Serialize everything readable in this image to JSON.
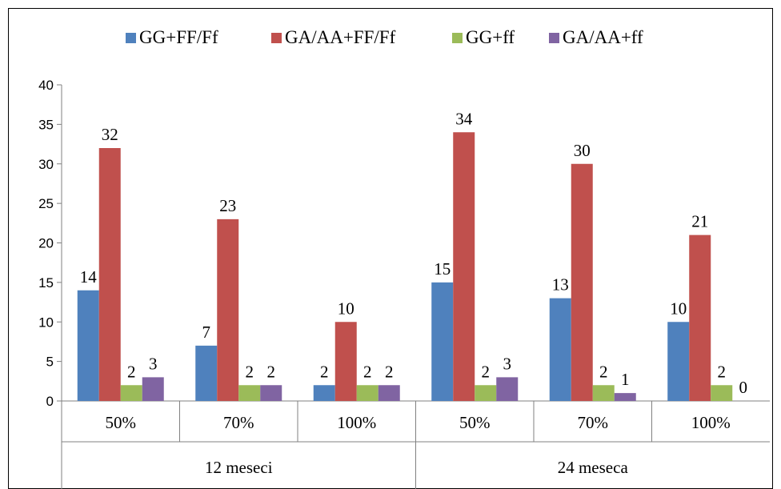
{
  "chart_data": {
    "type": "bar",
    "title": "",
    "xlabel": "",
    "ylabel": "",
    "ylim": [
      0,
      40
    ],
    "yticks": [
      0,
      5,
      10,
      15,
      20,
      25,
      30,
      35,
      40
    ],
    "grid": "none",
    "legend": "top-center",
    "categories": [
      "50%",
      "70%",
      "100%",
      "50%",
      "70%",
      "100%"
    ],
    "groups": [
      {
        "label": "12 meseci",
        "span": 3
      },
      {
        "label": "24 meseca",
        "span": 3
      }
    ],
    "series": [
      {
        "name": "GG+FF/Ff",
        "color": "#4F81BD",
        "values": [
          14,
          7,
          2,
          15,
          13,
          10
        ]
      },
      {
        "name": "GA/AA+FF/Ff",
        "color": "#C0504D",
        "values": [
          32,
          23,
          10,
          34,
          30,
          21
        ]
      },
      {
        "name": "GG+ff",
        "color": "#9BBB59",
        "values": [
          2,
          2,
          2,
          2,
          2,
          2
        ]
      },
      {
        "name": "GA/AA+ff",
        "color": "#8064A2",
        "values": [
          3,
          2,
          2,
          3,
          1,
          0
        ]
      }
    ]
  }
}
